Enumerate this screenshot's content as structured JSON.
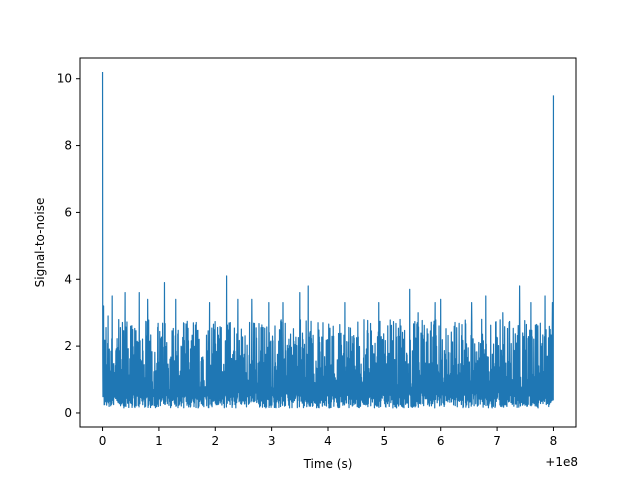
{
  "chart_data": {
    "type": "line",
    "title": "",
    "xlabel": "Time (s)",
    "ylabel": "Signal-to-noise",
    "x_offset_label": "+1e8",
    "xlim": [
      -0.4,
      8.4
    ],
    "ylim": [
      -0.42,
      10.62
    ],
    "x_ticks": [
      0,
      1,
      2,
      3,
      4,
      5,
      6,
      7,
      8
    ],
    "x_tick_labels": [
      "0",
      "1",
      "2",
      "3",
      "4",
      "5",
      "6",
      "7",
      "8"
    ],
    "y_ticks": [
      0,
      2,
      4,
      6,
      8,
      10
    ],
    "y_tick_labels": [
      "0",
      "2",
      "4",
      "6",
      "8",
      "10"
    ],
    "grid": false,
    "legend": "none",
    "series": [
      {
        "color": "#1f77b4",
        "x_start": 0,
        "x_end": 8,
        "noise_baseline": 0.3,
        "noise_typical_max": 2.8,
        "peaks": [
          {
            "x": 0.0,
            "y": 10.2
          },
          {
            "x": 0.02,
            "y": 3.2
          },
          {
            "x": 0.1,
            "y": 2.9
          },
          {
            "x": 0.17,
            "y": 3.5
          },
          {
            "x": 0.4,
            "y": 3.6
          },
          {
            "x": 0.65,
            "y": 3.6
          },
          {
            "x": 0.8,
            "y": 3.4
          },
          {
            "x": 1.1,
            "y": 3.9
          },
          {
            "x": 1.3,
            "y": 3.4
          },
          {
            "x": 1.9,
            "y": 3.3
          },
          {
            "x": 2.2,
            "y": 4.1
          },
          {
            "x": 2.4,
            "y": 3.4
          },
          {
            "x": 2.65,
            "y": 3.4
          },
          {
            "x": 2.95,
            "y": 3.3
          },
          {
            "x": 3.2,
            "y": 3.3
          },
          {
            "x": 3.5,
            "y": 3.6
          },
          {
            "x": 3.65,
            "y": 3.8
          },
          {
            "x": 4.3,
            "y": 3.3
          },
          {
            "x": 4.9,
            "y": 3.3
          },
          {
            "x": 5.45,
            "y": 3.7
          },
          {
            "x": 5.6,
            "y": 3.0
          },
          {
            "x": 5.9,
            "y": 3.3
          },
          {
            "x": 6.0,
            "y": 3.4
          },
          {
            "x": 6.55,
            "y": 3.3
          },
          {
            "x": 6.8,
            "y": 3.5
          },
          {
            "x": 7.1,
            "y": 3.0
          },
          {
            "x": 7.4,
            "y": 3.8
          },
          {
            "x": 7.6,
            "y": 3.3
          },
          {
            "x": 7.85,
            "y": 3.5
          },
          {
            "x": 7.98,
            "y": 3.3
          },
          {
            "x": 8.0,
            "y": 9.5
          }
        ]
      }
    ]
  }
}
